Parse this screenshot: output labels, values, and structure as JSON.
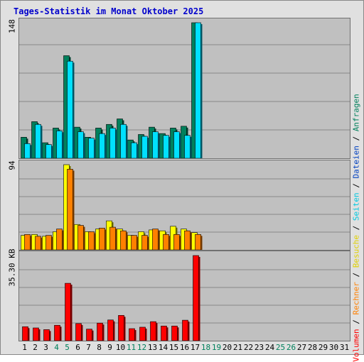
{
  "title": "Tages-Statistik im Monat Oktober 2025",
  "colors": {
    "anfragen": "#00805c",
    "dateien": "#00e0ff",
    "seiten": "#00e0ff",
    "besuche": "#ffff00",
    "rechner": "#ff8000",
    "volumen": "#ff0000",
    "weekday": "#000000",
    "weekend": "#00805c"
  },
  "legend": {
    "items": [
      {
        "label": "Volumen",
        "color": "#ff0000"
      },
      {
        "label": "Rechner",
        "color": "#ff8000"
      },
      {
        "label": "Besuche",
        "color": "#e0d000"
      },
      {
        "label": "Seiten",
        "color": "#00c8e0"
      },
      {
        "label": "Dateien",
        "color": "#0040c0"
      },
      {
        "label": "Anfragen",
        "color": "#00805c"
      }
    ],
    "separator": " / "
  },
  "chart_data": [
    {
      "type": "bar",
      "panel": "top",
      "ymax_label": "148",
      "ylim": [
        0,
        148
      ],
      "x": [
        1,
        2,
        3,
        4,
        5,
        6,
        7,
        8,
        9,
        10,
        11,
        12,
        13,
        14,
        15,
        16,
        17,
        18,
        19,
        20,
        21,
        22,
        23,
        24,
        25,
        26,
        27,
        28,
        29,
        30,
        31
      ],
      "series": [
        {
          "name": "Anfragen",
          "values": [
            23,
            40,
            17,
            33,
            112,
            34,
            23,
            33,
            37,
            43,
            20,
            26,
            34,
            27,
            33,
            35,
            148,
            0,
            0,
            0,
            0,
            0,
            0,
            0,
            0,
            0,
            0,
            0,
            0,
            0,
            0
          ]
        },
        {
          "name": "Dateien",
          "values": [
            16,
            37,
            15,
            30,
            106,
            29,
            22,
            27,
            33,
            37,
            17,
            24,
            29,
            25,
            29,
            25,
            148,
            0,
            0,
            0,
            0,
            0,
            0,
            0,
            0,
            0,
            0,
            0,
            0,
            0,
            0
          ]
        }
      ]
    },
    {
      "type": "bar",
      "panel": "middle",
      "ymax_label": "94",
      "ylim": [
        0,
        94
      ],
      "x": [
        1,
        2,
        3,
        4,
        5,
        6,
        7,
        8,
        9,
        10,
        11,
        12,
        13,
        14,
        15,
        16,
        17,
        18,
        19,
        20,
        21,
        22,
        23,
        24,
        25,
        26,
        27,
        28,
        29,
        30,
        31
      ],
      "series": [
        {
          "name": "Besuche",
          "values": [
            16,
            17,
            15,
            20,
            94,
            28,
            20,
            23,
            32,
            23,
            16,
            20,
            22,
            21,
            26,
            23,
            19,
            0,
            0,
            0,
            0,
            0,
            0,
            0,
            0,
            0,
            0,
            0,
            0,
            0,
            0
          ]
        },
        {
          "name": "Rechner",
          "values": [
            17,
            15,
            16,
            23,
            89,
            27,
            20,
            24,
            25,
            21,
            16,
            16,
            23,
            17,
            17,
            21,
            17,
            0,
            0,
            0,
            0,
            0,
            0,
            0,
            0,
            0,
            0,
            0,
            0,
            0,
            0
          ]
        }
      ]
    },
    {
      "type": "bar",
      "panel": "bottom",
      "ymax_label": "35.30 KB",
      "ylim": [
        0,
        35.3
      ],
      "x": [
        1,
        2,
        3,
        4,
        5,
        6,
        7,
        8,
        9,
        10,
        11,
        12,
        13,
        14,
        15,
        16,
        17,
        18,
        19,
        20,
        21,
        22,
        23,
        24,
        25,
        26,
        27,
        28,
        29,
        30,
        31
      ],
      "series": [
        {
          "name": "Volumen",
          "values": [
            5.8,
            5.3,
            4.6,
            6.4,
            23.8,
            7.1,
            4.8,
            7.3,
            8.6,
            10.5,
            5.0,
            5.6,
            7.9,
            6.1,
            6.1,
            8.5,
            35.3,
            0,
            0,
            0,
            0,
            0,
            0,
            0,
            0,
            0,
            0,
            0,
            0,
            0,
            0
          ]
        }
      ]
    }
  ],
  "days": [
    {
      "label": "1",
      "weekend": false
    },
    {
      "label": "2",
      "weekend": false
    },
    {
      "label": "3",
      "weekend": false
    },
    {
      "label": "4",
      "weekend": true
    },
    {
      "label": "5",
      "weekend": true
    },
    {
      "label": "6",
      "weekend": false
    },
    {
      "label": "7",
      "weekend": false
    },
    {
      "label": "8",
      "weekend": false
    },
    {
      "label": "9",
      "weekend": false
    },
    {
      "label": "10",
      "weekend": false
    },
    {
      "label": "11",
      "weekend": true
    },
    {
      "label": "12",
      "weekend": true
    },
    {
      "label": "13",
      "weekend": false
    },
    {
      "label": "14",
      "weekend": false
    },
    {
      "label": "15",
      "weekend": false
    },
    {
      "label": "16",
      "weekend": false
    },
    {
      "label": "17",
      "weekend": false
    },
    {
      "label": "18",
      "weekend": true
    },
    {
      "label": "19",
      "weekend": true
    },
    {
      "label": "20",
      "weekend": false
    },
    {
      "label": "21",
      "weekend": false
    },
    {
      "label": "22",
      "weekend": false
    },
    {
      "label": "23",
      "weekend": false
    },
    {
      "label": "24",
      "weekend": false
    },
    {
      "label": "25",
      "weekend": true
    },
    {
      "label": "26",
      "weekend": true
    },
    {
      "label": "27",
      "weekend": false
    },
    {
      "label": "28",
      "weekend": false
    },
    {
      "label": "29",
      "weekend": false
    },
    {
      "label": "30",
      "weekend": false
    },
    {
      "label": "31",
      "weekend": false
    }
  ]
}
